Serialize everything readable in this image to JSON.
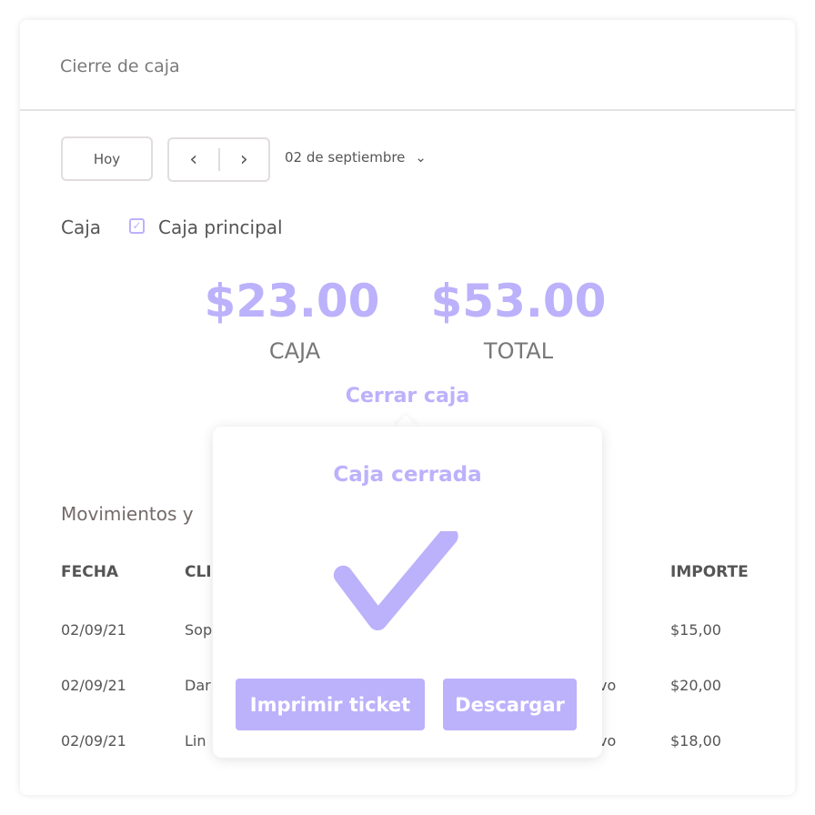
{
  "header": {
    "title": "Cierre de caja"
  },
  "toolbar": {
    "today_label": "Hoy",
    "prev_icon": "chevron-left-icon",
    "next_icon": "chevron-right-icon",
    "date": "02 de septiembre"
  },
  "filter": {
    "label": "Caja",
    "checkbox_label": "Caja principal",
    "checked": true
  },
  "summary": {
    "caja_amount": "$23.00",
    "caja_label": "CAJA",
    "total_amount": "$53.00",
    "total_label": "TOTAL",
    "close_link": "Cerrar caja"
  },
  "movements": {
    "title": "Movimientos y",
    "columns": [
      "FECHA",
      "CLI",
      "IMPORTE"
    ],
    "rows": [
      {
        "fecha": "02/09/21",
        "cliente": "Sop",
        "tail": "",
        "importe": "$15,00"
      },
      {
        "fecha": "02/09/21",
        "cliente": "Dar",
        "tail": "vo",
        "importe": "$20,00"
      },
      {
        "fecha": "02/09/21",
        "cliente": "Lin",
        "tail": "vo",
        "importe": "$18,00"
      }
    ]
  },
  "popover": {
    "title": "Caja cerrada",
    "icon": "checkmark-icon",
    "print_label": "Imprimir ticket",
    "download_label": "Descargar"
  },
  "colors": {
    "accent": "#bcb1fb",
    "text": "#555555"
  }
}
